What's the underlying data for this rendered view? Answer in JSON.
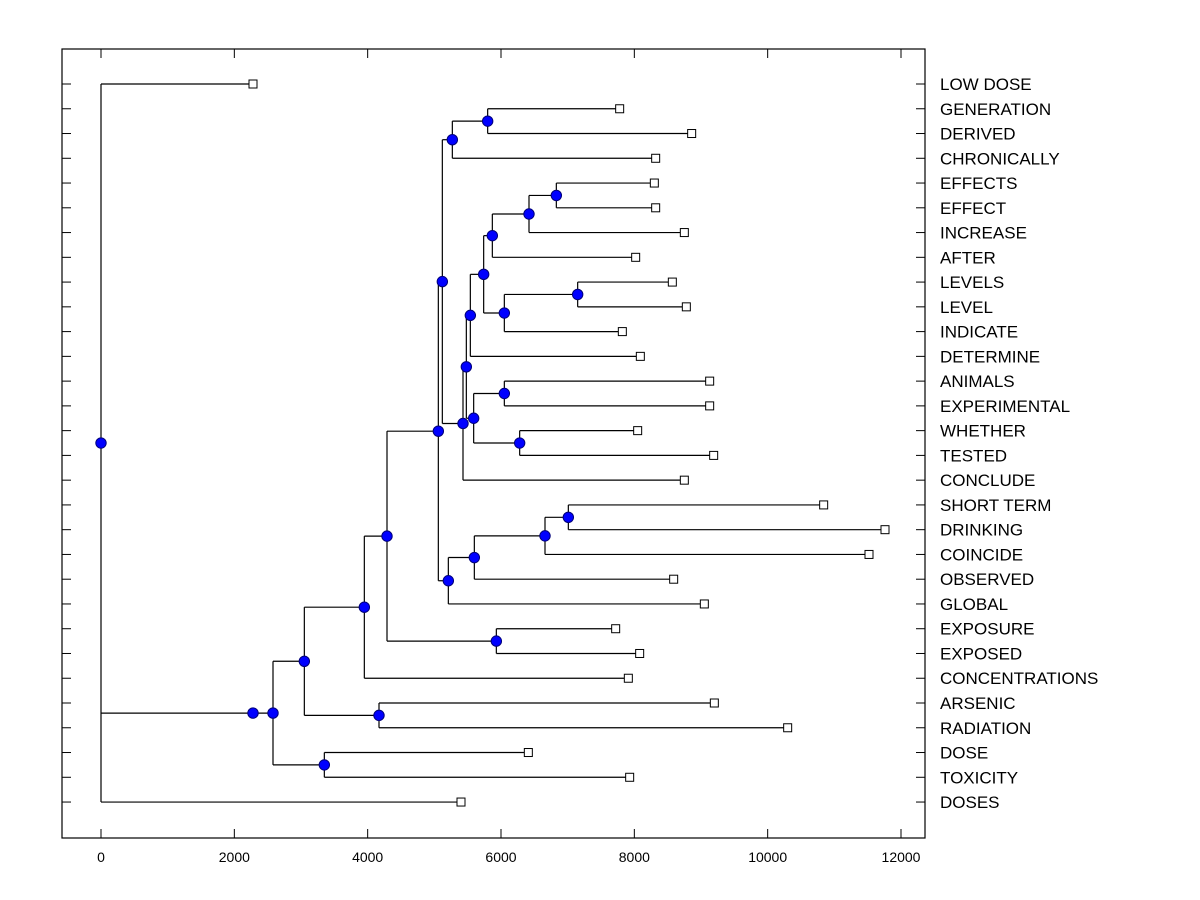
{
  "chart_data": {
    "type": "dendrogram",
    "title": "",
    "xlabel": "",
    "ylabel": "",
    "xlim": [
      -600,
      12400
    ],
    "x_ticks": [
      0,
      2000,
      4000,
      6000,
      8000,
      10000,
      12000
    ],
    "x_tick_labels": [
      "0",
      "2000",
      "4000",
      "6000",
      "8000",
      "10000",
      "12000"
    ],
    "grid": false,
    "label_position": "right",
    "leaves": [
      {
        "name": "LOW DOSE",
        "x": 2280
      },
      {
        "name": "GENERATION",
        "x": 7780
      },
      {
        "name": "DERIVED",
        "x": 8860
      },
      {
        "name": "CHRONICALLY",
        "x": 8320
      },
      {
        "name": "EFFECTS",
        "x": 8300
      },
      {
        "name": "EFFECT",
        "x": 8320
      },
      {
        "name": "INCREASE",
        "x": 8750
      },
      {
        "name": "AFTER",
        "x": 8020
      },
      {
        "name": "LEVELS",
        "x": 8570
      },
      {
        "name": "LEVEL",
        "x": 8780
      },
      {
        "name": "INDICATE",
        "x": 7820
      },
      {
        "name": "DETERMINE",
        "x": 8090
      },
      {
        "name": "ANIMALS",
        "x": 9130
      },
      {
        "name": "EXPERIMENTAL",
        "x": 9130
      },
      {
        "name": "WHETHER",
        "x": 8050
      },
      {
        "name": "TESTED",
        "x": 9190
      },
      {
        "name": "CONCLUDE",
        "x": 8750
      },
      {
        "name": "SHORT TERM",
        "x": 10840
      },
      {
        "name": "DRINKING",
        "x": 11760
      },
      {
        "name": "COINCIDE",
        "x": 11520
      },
      {
        "name": "OBSERVED",
        "x": 8590
      },
      {
        "name": "GLOBAL",
        "x": 9050
      },
      {
        "name": "EXPOSURE",
        "x": 7720
      },
      {
        "name": "EXPOSED",
        "x": 8080
      },
      {
        "name": "CONCENTRATIONS",
        "x": 7910
      },
      {
        "name": "ARSENIC",
        "x": 9200
      },
      {
        "name": "RADIATION",
        "x": 10300
      },
      {
        "name": "DOSE",
        "x": 6410
      },
      {
        "name": "TOXICITY",
        "x": 7930
      },
      {
        "name": "DOSES",
        "x": 5400
      }
    ],
    "tree": {
      "x": 0,
      "children": [
        "LOW DOSE",
        {
          "x": 2280,
          "children": [
            {
              "x": 2580,
              "children": [
                {
                  "x": 3050,
                  "children": [
                    {
                      "x": 3950,
                      "children": [
                        {
                          "x": 4290,
                          "children": [
                            {
                              "x": 5060,
                              "children": [
                                {
                                  "x": 5120,
                                  "children": [
                                    {
                                      "x": 5270,
                                      "children": [
                                        {
                                          "x": 5800,
                                          "children": [
                                            "GENERATION",
                                            "DERIVED"
                                          ]
                                        },
                                        "CHRONICALLY"
                                      ]
                                    },
                                    {
                                      "x": 5430,
                                      "children": [
                                        {
                                          "x": 5480,
                                          "children": [
                                            {
                                              "x": 5540,
                                              "children": [
                                                {
                                                  "x": 5740,
                                                  "children": [
                                                    {
                                                      "x": 5870,
                                                      "children": [
                                                        {
                                                          "x": 6420,
                                                          "children": [
                                                            {
                                                              "x": 6830,
                                                              "children": [
                                                                "EFFECTS",
                                                                "EFFECT"
                                                              ]
                                                            },
                                                            "INCREASE"
                                                          ]
                                                        },
                                                        "AFTER"
                                                      ]
                                                    },
                                                    {
                                                      "x": 6050,
                                                      "children": [
                                                        {
                                                          "x": 7150,
                                                          "children": [
                                                            "LEVELS",
                                                            "LEVEL"
                                                          ]
                                                        },
                                                        "INDICATE"
                                                      ]
                                                    }
                                                  ]
                                                },
                                                "DETERMINE"
                                              ]
                                            },
                                            {
                                              "x": 5590,
                                              "children": [
                                                {
                                                  "x": 6050,
                                                  "children": [
                                                    "ANIMALS",
                                                    "EXPERIMENTAL"
                                                  ]
                                                },
                                                {
                                                  "x": 6280,
                                                  "children": [
                                                    "WHETHER",
                                                    "TESTED"
                                                  ]
                                                }
                                              ]
                                            }
                                          ]
                                        },
                                        "CONCLUDE"
                                      ]
                                    }
                                  ]
                                },
                                {
                                  "x": 5210,
                                  "children": [
                                    {
                                      "x": 5600,
                                      "children": [
                                        {
                                          "x": 6660,
                                          "children": [
                                            {
                                              "x": 7010,
                                              "children": [
                                                "SHORT TERM",
                                                "DRINKING"
                                              ]
                                            },
                                            "COINCIDE"
                                          ]
                                        },
                                        "OBSERVED"
                                      ]
                                    },
                                    "GLOBAL"
                                  ]
                                }
                              ]
                            },
                            {
                              "x": 5930,
                              "children": [
                                "EXPOSURE",
                                "EXPOSED"
                              ]
                            }
                          ]
                        },
                        "CONCENTRATIONS"
                      ]
                    },
                    {
                      "x": 4170,
                      "children": [
                        "ARSENIC",
                        "RADIATION"
                      ]
                    }
                  ]
                },
                {
                  "x": 3350,
                  "children": [
                    "DOSE",
                    "TOXICITY"
                  ]
                }
              ]
            }
          ]
        },
        "DOSES"
      ]
    },
    "colors": {
      "node_fill": "#0000ff",
      "node_stroke": "#00007a",
      "leaf_fill": "#ffffff",
      "line": "#000000"
    }
  }
}
